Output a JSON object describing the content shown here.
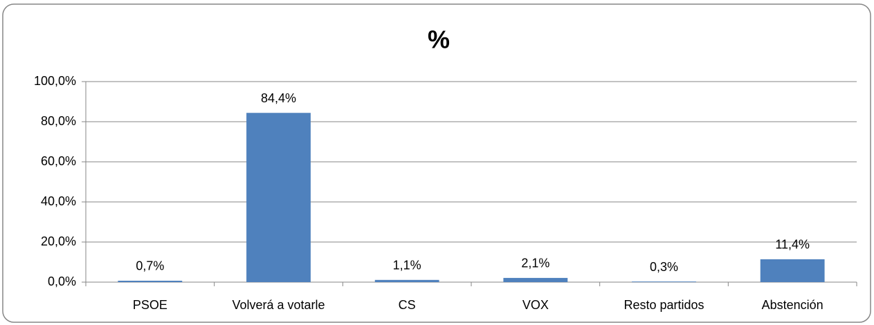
{
  "chart_data": {
    "type": "bar",
    "title": "%",
    "categories": [
      "PSOE",
      "Volverá a votarle",
      "CS",
      "VOX",
      "Resto partidos",
      "Abstención"
    ],
    "values": [
      0.7,
      84.4,
      1.1,
      2.1,
      0.3,
      11.4
    ],
    "value_labels": [
      "0,7%",
      "84,4%",
      "1,1%",
      "2,1%",
      "0,3%",
      "11,4%"
    ],
    "color": "#4f81bd",
    "ylim": [
      0,
      100
    ],
    "yticks": [
      {
        "value": 0,
        "label": "0,0%"
      },
      {
        "value": 20,
        "label": "20,0%"
      },
      {
        "value": 40,
        "label": "40,0%"
      },
      {
        "value": 60,
        "label": "60,0%"
      },
      {
        "value": 80,
        "label": "80,0%"
      },
      {
        "value": 100,
        "label": "100,0%"
      }
    ],
    "grid": true
  }
}
